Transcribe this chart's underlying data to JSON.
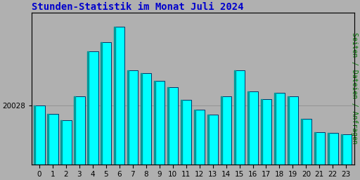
{
  "title": "Stunden-Statistik im Monat Juli 2024",
  "ylabel": "Seiten / Dateien / Anfragen",
  "categories": [
    0,
    1,
    2,
    3,
    4,
    5,
    6,
    7,
    8,
    9,
    10,
    11,
    12,
    13,
    14,
    15,
    16,
    17,
    18,
    19,
    20,
    21,
    22,
    23
  ],
  "values": [
    20028,
    20010,
    19995,
    20048,
    20145,
    20165,
    20200,
    20105,
    20098,
    20082,
    20068,
    20040,
    20018,
    20008,
    20048,
    20105,
    20058,
    20042,
    20055,
    20048,
    19998,
    19970,
    19968,
    19965
  ],
  "bar_face_color": "#00FFFF",
  "bar_edge_color": "#003366",
  "bar_left_color": "#009999",
  "background_color": "#B0B0B0",
  "plot_bg_color": "#B0B0B0",
  "title_color": "#0000CC",
  "ylabel_color": "#007700",
  "tick_color": "#000000",
  "ylim_min": 19900,
  "ylim_max": 20230,
  "ytick_value": 20028,
  "title_fontsize": 10,
  "ylabel_fontsize": 7,
  "tick_fontsize": 7.5
}
